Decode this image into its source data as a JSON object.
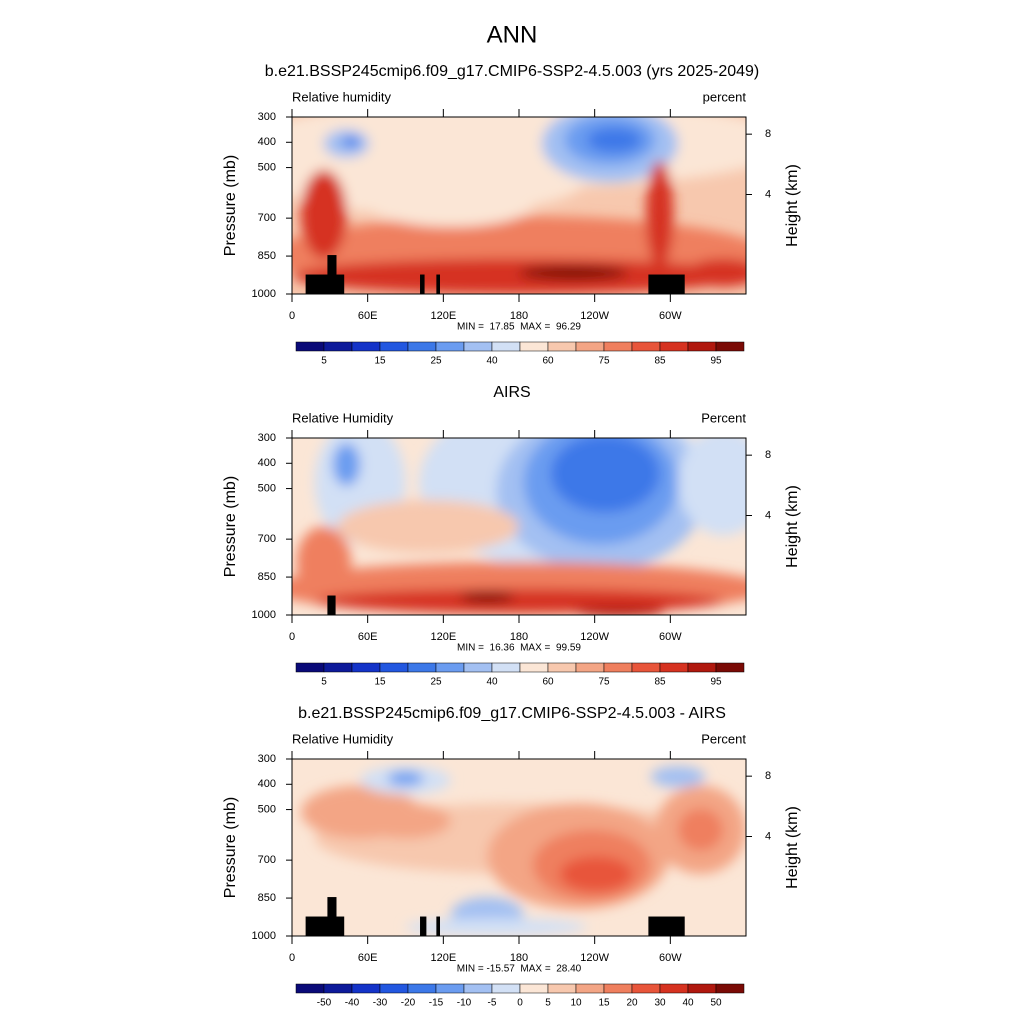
{
  "title": "ANN",
  "chart_data": [
    {
      "type": "contour",
      "title": "b.e21.BSSP245cmip6.f09_g17.CMIP6-SSP2-4.5.003 (yrs 2025-2049)",
      "left_label": "Relative humidity",
      "right_label": "percent",
      "ylabel": "Pressure (mb)",
      "y2label": "Height (km)",
      "xlim": [
        0,
        360
      ],
      "xticks": [
        0,
        {
          "value": 60,
          "label": "60E"
        },
        {
          "value": 120,
          "label": "120E"
        },
        180,
        {
          "value": 240,
          "label": "120W"
        },
        {
          "value": 300,
          "label": "60W"
        }
      ],
      "ylim": [
        1000,
        300
      ],
      "yticks": [
        300,
        400,
        500,
        700,
        850,
        1000
      ],
      "y2ticks": [
        8,
        4
      ],
      "stats": "MIN =  17.85  MAX =  96.29",
      "colorbar": {
        "colors": [
          "#0a0a78",
          "#0d1a9a",
          "#1433c8",
          "#2257e0",
          "#3c78e8",
          "#6b9cf0",
          "#a3c0f2",
          "#d2e0f5",
          "#fbe6d6",
          "#f7c8ae",
          "#f3a585",
          "#ef7f5e",
          "#e8553a",
          "#d63220",
          "#b0180e",
          "#7a0a05"
        ],
        "labels": [
          5,
          null,
          15,
          null,
          25,
          null,
          40,
          null,
          60,
          null,
          75,
          null,
          85,
          null,
          95
        ]
      }
    },
    {
      "type": "contour",
      "title": "AIRS",
      "left_label": "Relative Humidity",
      "right_label": "Percent",
      "ylabel": "Pressure (mb)",
      "y2label": "Height (km)",
      "xlim": [
        0,
        360
      ],
      "xticks": [
        0,
        {
          "value": 60,
          "label": "60E"
        },
        {
          "value": 120,
          "label": "120E"
        },
        180,
        {
          "value": 240,
          "label": "120W"
        },
        {
          "value": 300,
          "label": "60W"
        }
      ],
      "ylim": [
        1000,
        300
      ],
      "yticks": [
        300,
        400,
        500,
        700,
        850,
        1000
      ],
      "y2ticks": [
        8,
        4
      ],
      "stats": "MIN =  16.36  MAX =  99.59",
      "colorbar": {
        "colors": [
          "#0a0a78",
          "#0d1a9a",
          "#1433c8",
          "#2257e0",
          "#3c78e8",
          "#6b9cf0",
          "#a3c0f2",
          "#d2e0f5",
          "#fbe6d6",
          "#f7c8ae",
          "#f3a585",
          "#ef7f5e",
          "#e8553a",
          "#d63220",
          "#b0180e",
          "#7a0a05"
        ],
        "labels": [
          5,
          null,
          15,
          null,
          25,
          null,
          40,
          null,
          60,
          null,
          75,
          null,
          85,
          null,
          95
        ]
      }
    },
    {
      "type": "contour",
      "title": "b.e21.BSSP245cmip6.f09_g17.CMIP6-SSP2-4.5.003 - AIRS",
      "left_label": "Relative Humidity",
      "right_label": "Percent",
      "ylabel": "Pressure (mb)",
      "y2label": "Height (km)",
      "xlim": [
        0,
        360
      ],
      "xticks": [
        0,
        {
          "value": 60,
          "label": "60E"
        },
        {
          "value": 120,
          "label": "120E"
        },
        180,
        {
          "value": 240,
          "label": "120W"
        },
        {
          "value": 300,
          "label": "60W"
        }
      ],
      "ylim": [
        1000,
        300
      ],
      "yticks": [
        300,
        400,
        500,
        700,
        850,
        1000
      ],
      "y2ticks": [
        8,
        4
      ],
      "stats": "MIN = -15.57  MAX =  28.40",
      "colorbar": {
        "colors": [
          "#0a0a78",
          "#0d1a9a",
          "#1433c8",
          "#2257e0",
          "#3c78e8",
          "#6b9cf0",
          "#a3c0f2",
          "#d2e0f5",
          "#fbe6d6",
          "#f7c8ae",
          "#f3a585",
          "#ef7f5e",
          "#e8553a",
          "#d63220",
          "#b0180e",
          "#7a0a05"
        ],
        "labels": [
          -50,
          -40,
          -30,
          -20,
          -15,
          -10,
          -5,
          0,
          5,
          10,
          15,
          20,
          30,
          40,
          50
        ]
      }
    }
  ]
}
